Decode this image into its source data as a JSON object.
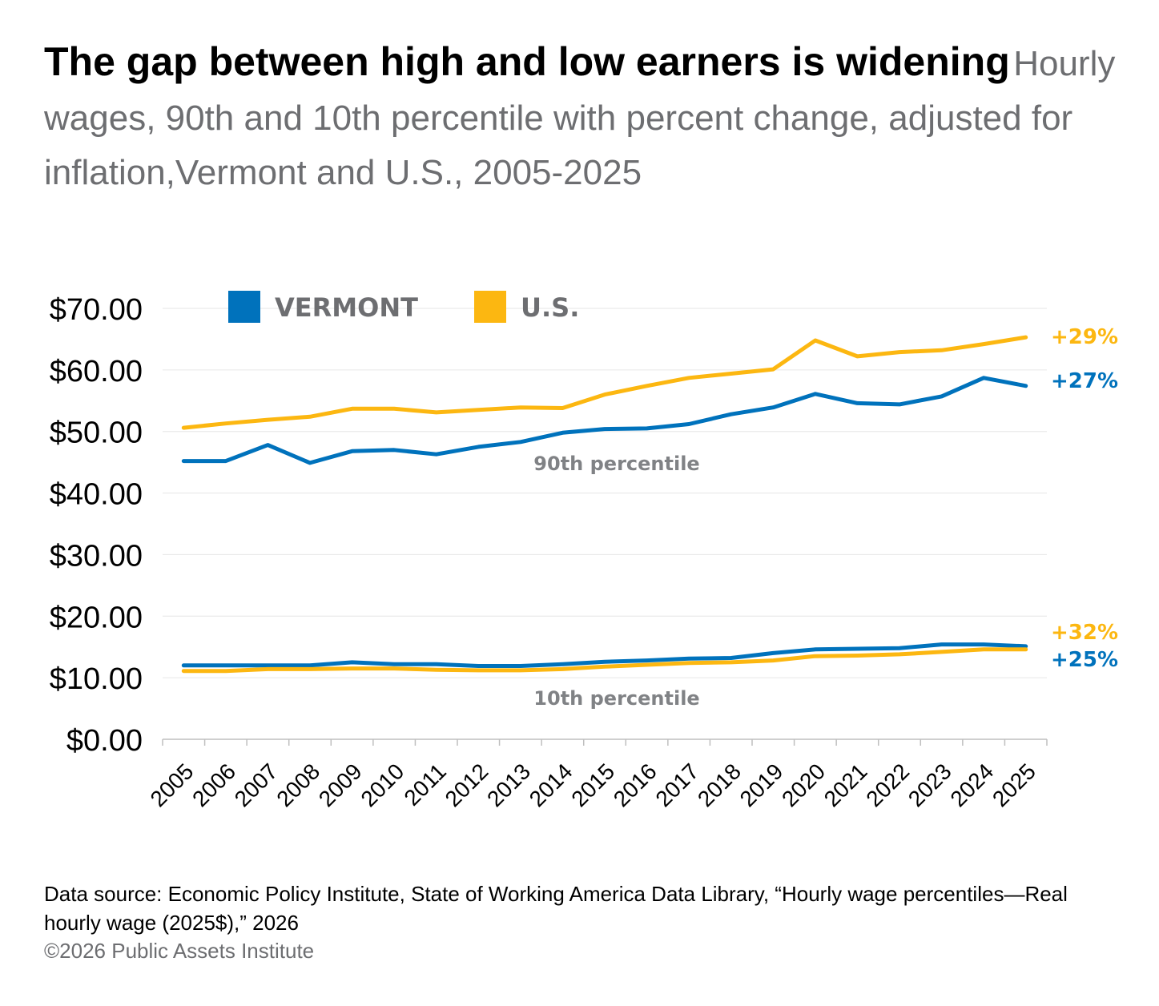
{
  "title": "The gap between high and low earners is widening",
  "subtitle": "Hourly wages, 90th and 10th percentile with percent change, adjusted for inflation,Vermont and U.S., 2005-2025",
  "legend": [
    {
      "label": "VERMONT",
      "color": "#0072bc"
    },
    {
      "label": "U.S.",
      "color": "#fcb711"
    }
  ],
  "group_labels": {
    "p90": "90th percentile",
    "p10": "10th percentile"
  },
  "source": "Data source: Economic Policy Institute, State of Working America Data Library, “Hourly wage percentiles—Real hourly wage (2025$),” 2026",
  "copyright": "©2026 Public Assets Institute",
  "chart_data": {
    "type": "line",
    "ylim": [
      0,
      70
    ],
    "y_ticks": [
      "$0.00",
      "$10.00",
      "$20.00",
      "$30.00",
      "$40.00",
      "$50.00",
      "$60.00",
      "$70.00"
    ],
    "grid": true,
    "legend_position": "top",
    "x": [
      "2005",
      "2006",
      "2007",
      "2008",
      "2009",
      "2010",
      "2011",
      "2012",
      "2013",
      "2014",
      "2015",
      "2016",
      "2017",
      "2018",
      "2019",
      "2020",
      "2021",
      "2022",
      "2023",
      "2024",
      "2025"
    ],
    "series": [
      {
        "name": "VERMONT",
        "group": "90th percentile",
        "color": "#0072bc",
        "end_label": "+27%",
        "values": [
          45.2,
          45.2,
          47.8,
          44.9,
          46.8,
          47.0,
          46.3,
          47.5,
          48.3,
          49.8,
          50.4,
          50.5,
          51.2,
          52.8,
          53.9,
          56.1,
          54.6,
          54.4,
          55.7,
          58.7,
          57.4
        ]
      },
      {
        "name": "U.S.",
        "group": "90th percentile",
        "color": "#fcb711",
        "end_label": "+29%",
        "values": [
          50.6,
          51.3,
          51.9,
          52.4,
          53.7,
          53.7,
          53.1,
          53.5,
          53.9,
          53.8,
          56.0,
          57.4,
          58.7,
          59.4,
          60.1,
          64.8,
          62.2,
          62.9,
          63.2,
          64.2,
          65.3
        ]
      },
      {
        "name": "VERMONT",
        "group": "10th percentile",
        "color": "#0072bc",
        "end_label": "+25%",
        "values": [
          12.0,
          12.0,
          12.0,
          12.0,
          12.5,
          12.2,
          12.2,
          11.9,
          11.9,
          12.2,
          12.6,
          12.8,
          13.1,
          13.2,
          14.0,
          14.6,
          14.7,
          14.8,
          15.4,
          15.4,
          15.1
        ]
      },
      {
        "name": "U.S.",
        "group": "10th percentile",
        "color": "#fcb711",
        "end_label": "+32%",
        "values": [
          11.1,
          11.1,
          11.4,
          11.4,
          11.5,
          11.5,
          11.3,
          11.2,
          11.2,
          11.4,
          11.8,
          12.1,
          12.4,
          12.5,
          12.8,
          13.5,
          13.6,
          13.8,
          14.2,
          14.6,
          14.6
        ]
      }
    ]
  }
}
